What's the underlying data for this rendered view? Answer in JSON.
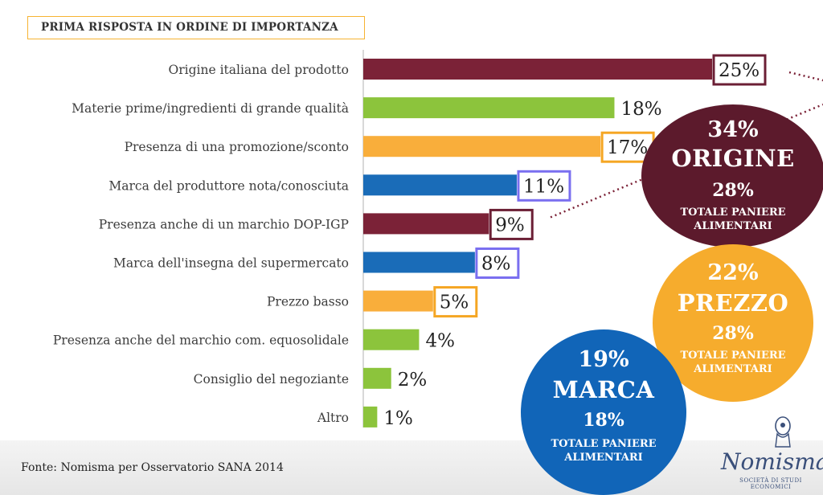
{
  "header": {
    "title": "PRIMA RISPOSTA IN ORDINE DI IMPORTANZA"
  },
  "chart_data": {
    "type": "bar",
    "orientation": "horizontal",
    "title": "PRIMA RISPOSTA IN ORDINE DI IMPORTANZA",
    "unit": "%",
    "xlim": [
      0,
      25
    ],
    "categories": [
      "Origine italiana del prodotto",
      "Materie prime/ingredienti di grande qualità",
      "Presenza di una promozione/sconto",
      "Marca del produttore nota/conosciuta",
      "Presenza anche di un marchio DOP-IGP",
      "Marca dell'insegna del supermercato",
      "Prezzo basso",
      "Presenza anche del marchio com. equosolidale",
      "Consiglio del negoziante",
      "Altro"
    ],
    "values": [
      25,
      18,
      17,
      11,
      9,
      8,
      5,
      4,
      2,
      1
    ],
    "labels": [
      "25%",
      "18%",
      "17%",
      "11%",
      "9%",
      "8%",
      "5%",
      "4%",
      "2%",
      "1%"
    ],
    "groups": [
      "origine",
      "qualita",
      "prezzo",
      "marca",
      "origine",
      "marca",
      "prezzo",
      "qualita",
      "qualita",
      "qualita"
    ],
    "group_colors": {
      "origine": "#7b2237",
      "qualita": "#8cc43c",
      "prezzo": "#f9ae3b",
      "marca": "#1a6cb8"
    },
    "boxed_label_colors": {
      "origine": "#6b1f35",
      "prezzo": "#f5a623",
      "marca": "#7a6ff0"
    }
  },
  "summary": {
    "origine": {
      "pct": "34%",
      "word": "ORIGINE",
      "basket_pct": "28%",
      "basket_line1": "TOTALE PANIERE",
      "basket_line2": "ALIMENTARI",
      "color": "#5c1a2c"
    },
    "prezzo": {
      "pct": "22%",
      "word": "PREZZO",
      "basket_pct": "28%",
      "basket_line1": "TOTALE PANIERE",
      "basket_line2": "ALIMENTARI",
      "color": "#f6ac2d"
    },
    "marca": {
      "pct": "19%",
      "word": "MARCA",
      "basket_pct": "18%",
      "basket_line1": "TOTALE PANIERE",
      "basket_line2": "ALIMENTARI",
      "color": "#1165b8"
    }
  },
  "footer": {
    "source": "Fonte: Nomisma per Osservatorio SANA 2014",
    "logo_name": "Nomisma",
    "logo_sub": "SOCIETÀ DI STUDI ECONOMICI"
  }
}
